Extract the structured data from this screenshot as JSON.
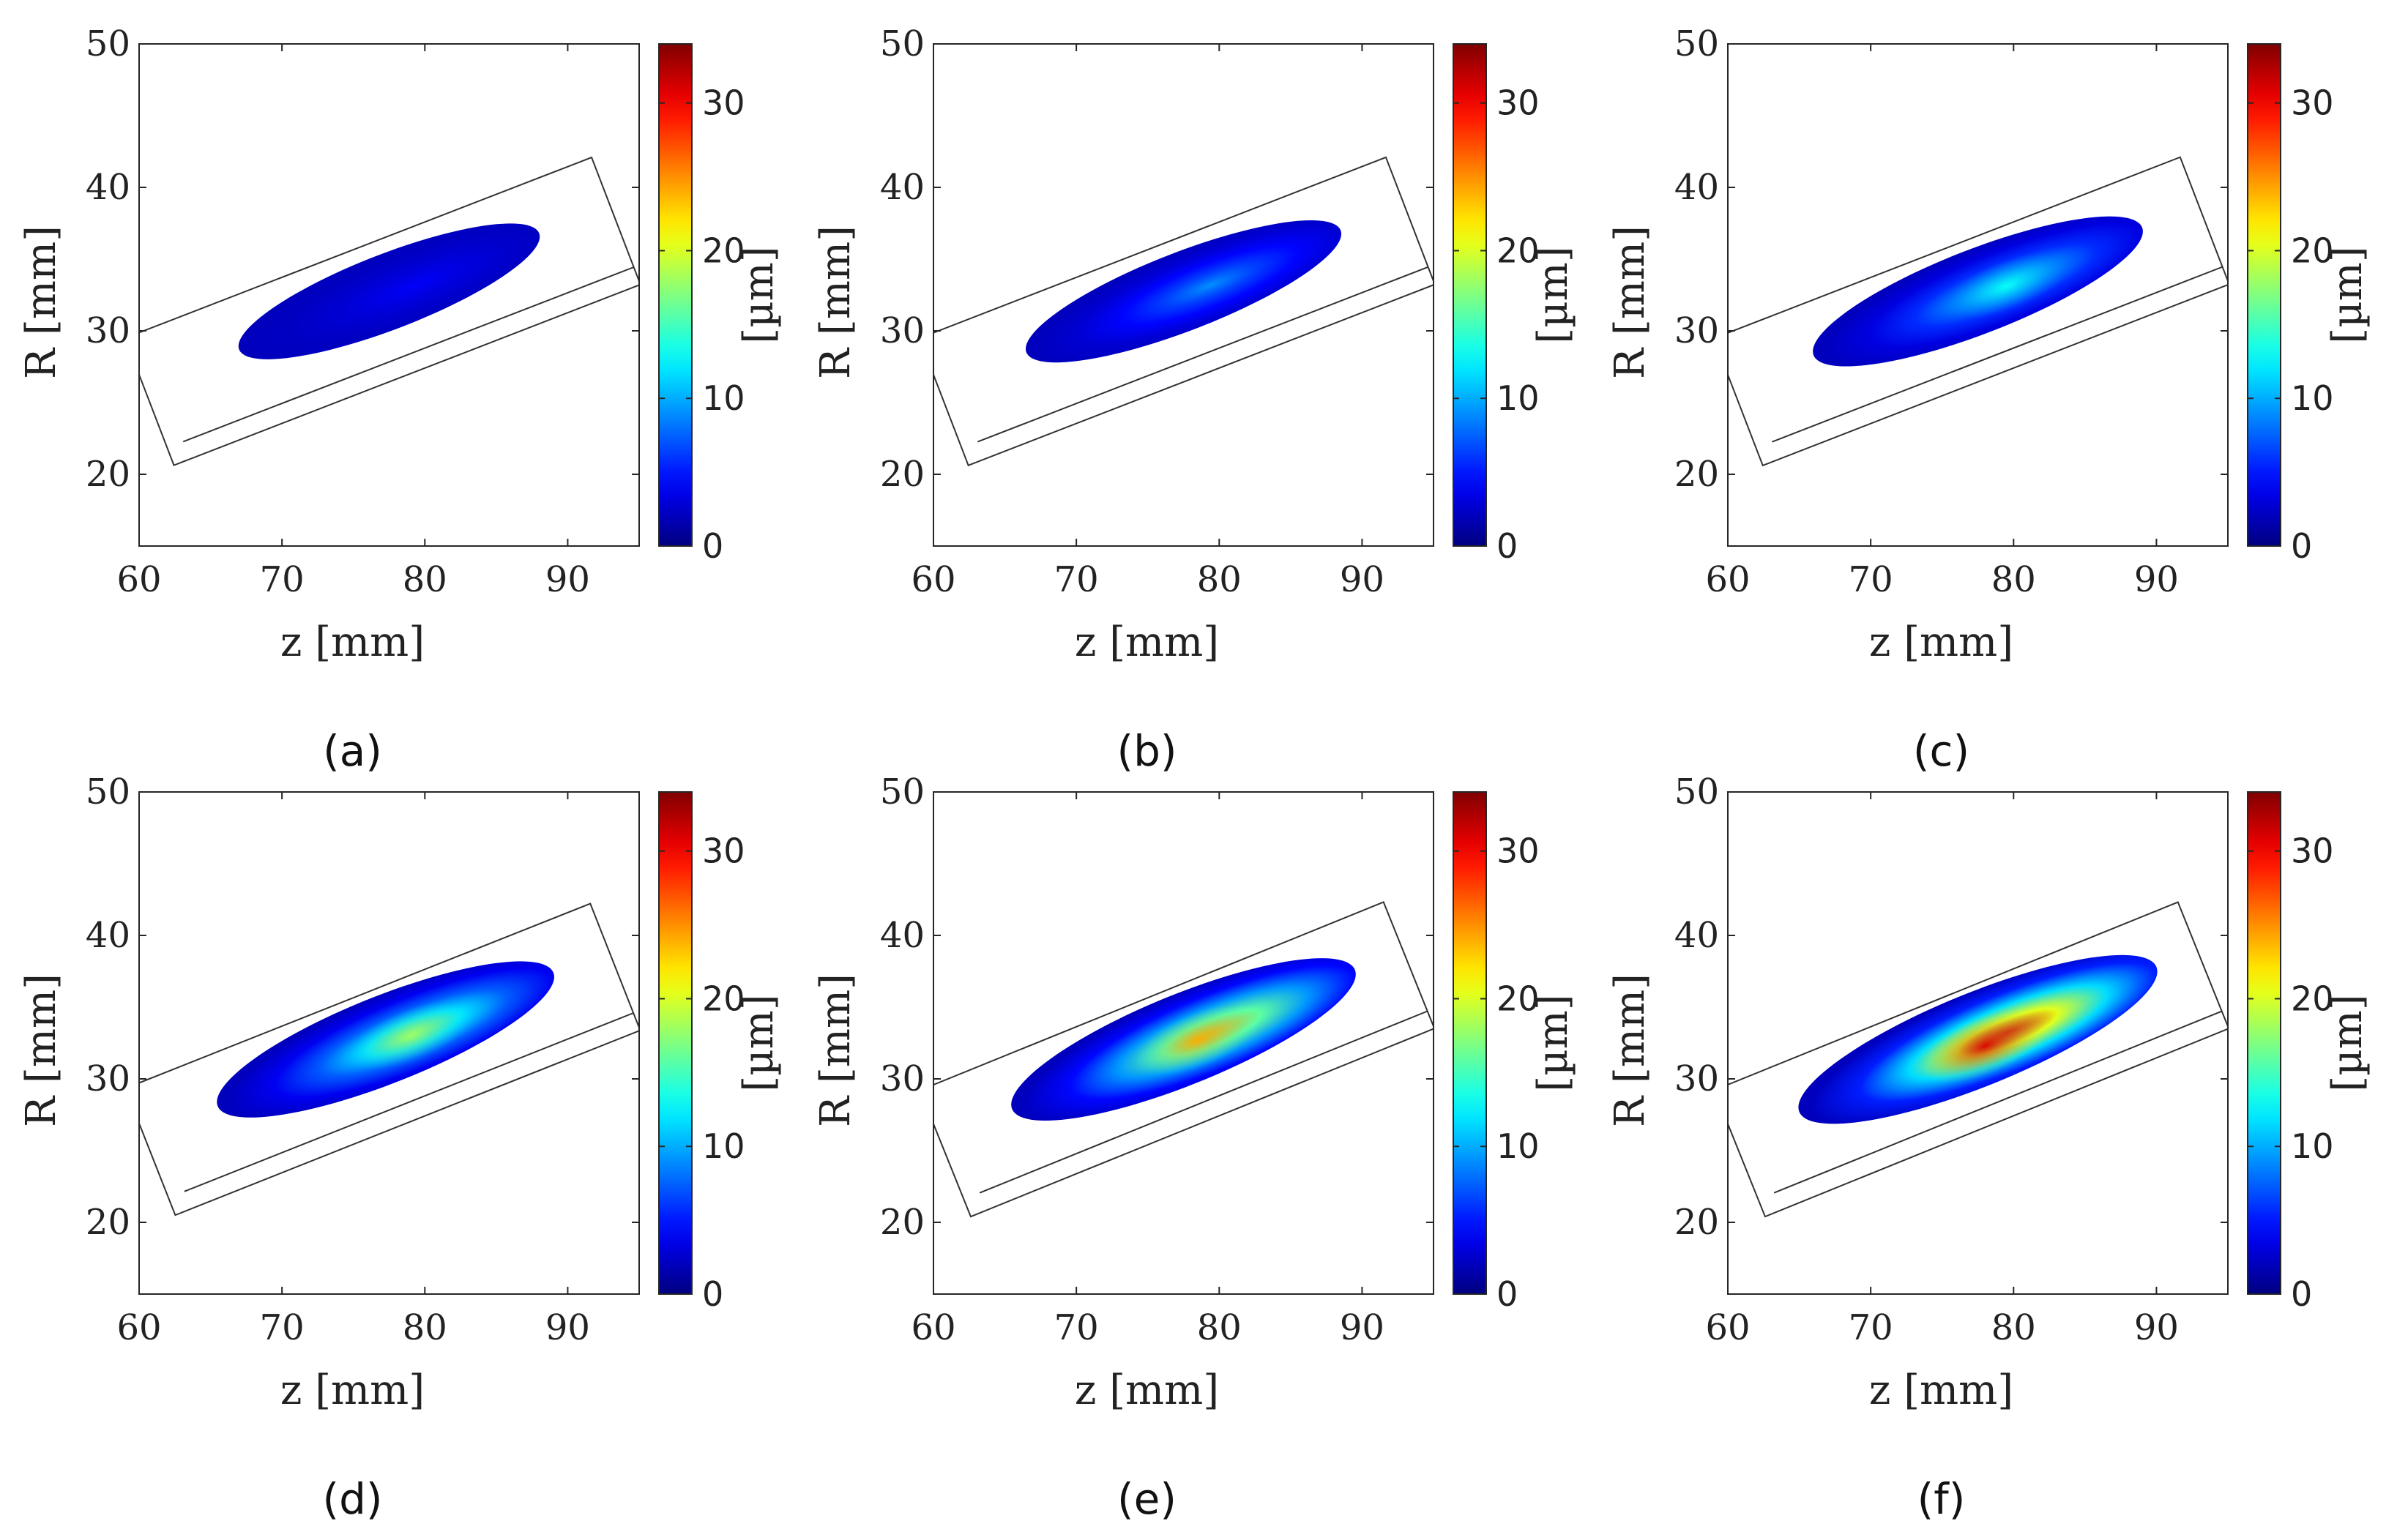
{
  "chart_data": [
    {
      "type": "heatmap",
      "panel_label": "(a)",
      "panel_letter": "a",
      "xlabel": "z [mm]",
      "ylabel": "R [mm]",
      "xlim": [
        60,
        95
      ],
      "ylim": [
        15,
        50
      ],
      "xticks": [
        60,
        70,
        80,
        90
      ],
      "yticks": [
        20,
        30,
        40,
        50
      ],
      "colorbar": {
        "label": "[µm]",
        "min": 0,
        "max": 34,
        "ticks": [
          0,
          10,
          20,
          30
        ],
        "colormap": "jet"
      },
      "peak_value": 4,
      "spot": {
        "z_start": 67,
        "z_end": 88,
        "R_start": 28.7,
        "R_end": 36.8,
        "half_thickness": 2.5
      },
      "hot_center": {
        "z": 80,
        "R": 33.3
      }
    },
    {
      "type": "heatmap",
      "panel_label": "(b)",
      "panel_letter": "b",
      "xlabel": "z [mm]",
      "ylabel": "R [mm]",
      "xlim": [
        60,
        95
      ],
      "ylim": [
        15,
        50
      ],
      "xticks": [
        60,
        70,
        80,
        90
      ],
      "yticks": [
        20,
        30,
        40,
        50
      ],
      "colorbar": {
        "label": "[µm]",
        "min": 0,
        "max": 34,
        "ticks": [
          0,
          10,
          20,
          30
        ],
        "colormap": "jet"
      },
      "peak_value": 9,
      "spot": {
        "z_start": 66.5,
        "z_end": 88.5,
        "R_start": 28.5,
        "R_end": 37,
        "half_thickness": 2.6
      },
      "hot_center": {
        "z": 80,
        "R": 33.3
      }
    },
    {
      "type": "heatmap",
      "panel_label": "(c)",
      "panel_letter": "c",
      "xlabel": "z [mm]",
      "ylabel": "R [mm]",
      "xlim": [
        60,
        95
      ],
      "ylim": [
        15,
        50
      ],
      "xticks": [
        60,
        70,
        80,
        90
      ],
      "yticks": [
        20,
        30,
        40,
        50
      ],
      "colorbar": {
        "label": "[µm]",
        "min": 0,
        "max": 34,
        "ticks": [
          0,
          10,
          20,
          30
        ],
        "colormap": "jet"
      },
      "peak_value": 13,
      "spot": {
        "z_start": 66,
        "z_end": 89,
        "R_start": 28.3,
        "R_end": 37.2,
        "half_thickness": 2.8
      },
      "hot_center": {
        "z": 79.5,
        "R": 33.1
      }
    },
    {
      "type": "heatmap",
      "panel_label": "(d)",
      "panel_letter": "d",
      "xlabel": "z [mm]",
      "ylabel": "R [mm]",
      "xlim": [
        60,
        95
      ],
      "ylim": [
        15,
        50
      ],
      "xticks": [
        60,
        70,
        80,
        90
      ],
      "yticks": [
        20,
        30,
        40,
        50
      ],
      "colorbar": {
        "label": "[µm]",
        "min": 0,
        "max": 34,
        "ticks": [
          0,
          10,
          20,
          30
        ],
        "colormap": "jet"
      },
      "peak_value": 18,
      "spot": {
        "z_start": 65.5,
        "z_end": 89,
        "R_start": 28.1,
        "R_end": 37.4,
        "half_thickness": 2.9
      },
      "hot_center": {
        "z": 79,
        "R": 33
      }
    },
    {
      "type": "heatmap",
      "panel_label": "(e)",
      "panel_letter": "e",
      "xlabel": "z [mm]",
      "ylabel": "R [mm]",
      "xlim": [
        60,
        95
      ],
      "ylim": [
        15,
        50
      ],
      "xticks": [
        60,
        70,
        80,
        90
      ],
      "yticks": [
        20,
        30,
        40,
        50
      ],
      "colorbar": {
        "label": "[µm]",
        "min": 0,
        "max": 34,
        "ticks": [
          0,
          10,
          20,
          30
        ],
        "colormap": "jet"
      },
      "peak_value": 24,
      "spot": {
        "z_start": 65.5,
        "z_end": 89.5,
        "R_start": 27.9,
        "R_end": 37.6,
        "half_thickness": 3
      },
      "hot_center": {
        "z": 78.5,
        "R": 32.7
      }
    },
    {
      "type": "heatmap",
      "panel_label": "(f)",
      "panel_letter": "f",
      "xlabel": "z [mm]",
      "ylabel": "R [mm]",
      "xlim": [
        60,
        95
      ],
      "ylim": [
        15,
        50
      ],
      "xticks": [
        60,
        70,
        80,
        90
      ],
      "yticks": [
        20,
        30,
        40,
        50
      ],
      "colorbar": {
        "label": "[µm]",
        "min": 0,
        "max": 34,
        "ticks": [
          0,
          10,
          20,
          30
        ],
        "colormap": "jet"
      },
      "peak_value": 31,
      "spot": {
        "z_start": 65,
        "z_end": 90,
        "R_start": 27.7,
        "R_end": 37.8,
        "half_thickness": 3.1
      },
      "hot_center": {
        "z": 78,
        "R": 32.3
      }
    }
  ]
}
